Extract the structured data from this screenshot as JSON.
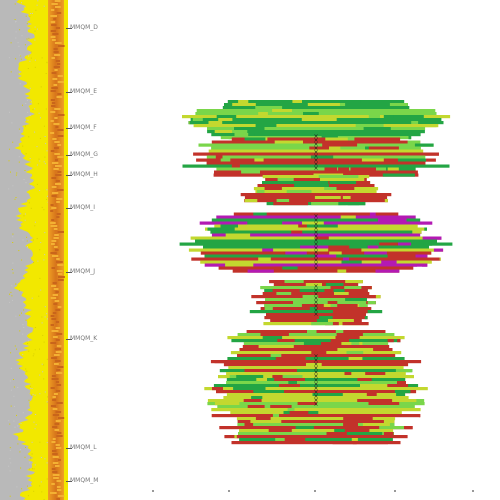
{
  "header": {
    "caption": ""
  },
  "colors": {
    "log_yellow": "#f2e800",
    "log_gray": "#b9b9b9",
    "log_orange": "#e59a1d",
    "green": "#23a544",
    "light_green": "#7ad64a",
    "yellow_green": "#c3d82f",
    "red": "#c2322a",
    "magenta": "#b31ab3",
    "dark": "#1b1b1b"
  },
  "zones": [
    {
      "label": "MMQM_D",
      "depth": 0.055
    },
    {
      "label": "MMQM_E",
      "depth": 0.183
    },
    {
      "label": "MMQM_F",
      "depth": 0.256
    },
    {
      "label": "MMQM_G",
      "depth": 0.309
    },
    {
      "label": "MMQM_H",
      "depth": 0.35
    },
    {
      "label": "MMQM_I",
      "depth": 0.415
    },
    {
      "label": "MMQM_J",
      "depth": 0.543
    },
    {
      "label": "MMQM_K",
      "depth": 0.678
    },
    {
      "label": "MMQM_L",
      "depth": 0.895
    },
    {
      "label": "MMQM_M",
      "depth": 0.962
    }
  ],
  "bands": [
    {
      "depth_top": 0.2,
      "depth_bottom": 0.275,
      "half_width": 0.24,
      "fill": "green"
    },
    {
      "depth_top": 0.275,
      "depth_bottom": 0.35,
      "half_width": 0.25,
      "fill": "mixed-red"
    },
    {
      "depth_top": 0.35,
      "depth_bottom": 0.41,
      "half_width": 0.14,
      "fill": "mixed-green"
    },
    {
      "depth_top": 0.425,
      "depth_bottom": 0.54,
      "half_width": 0.24,
      "fill": "magenta"
    },
    {
      "depth_top": 0.56,
      "depth_bottom": 0.65,
      "half_width": 0.12,
      "fill": "mixed-red"
    },
    {
      "depth_top": 0.66,
      "depth_bottom": 0.885,
      "half_width": 0.2,
      "fill": "mixed-red"
    }
  ]
}
